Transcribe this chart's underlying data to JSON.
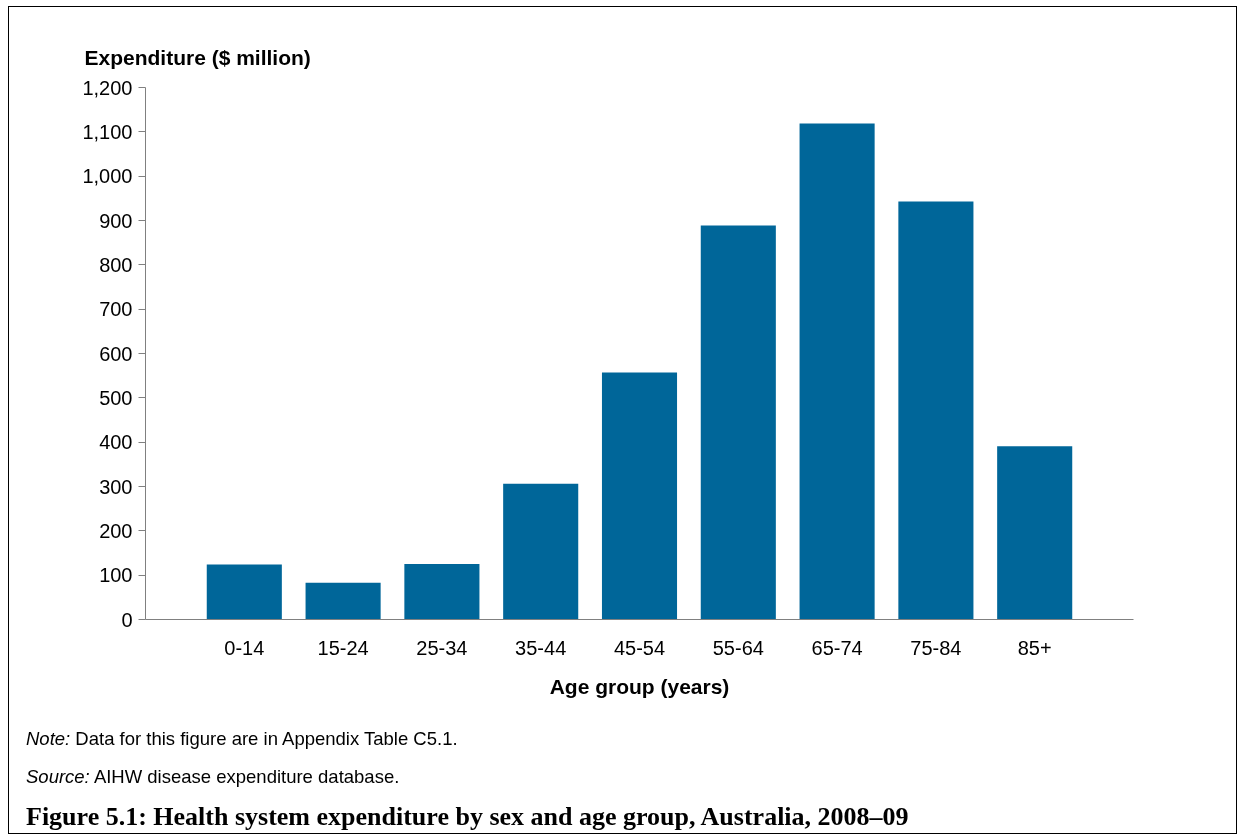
{
  "chart_data": {
    "type": "bar",
    "title": "Figure 5.1: Health system expenditure by sex and age group, Australia, 2008–09",
    "xlabel": "Age group (years)",
    "ylabel": "Expenditure ($ million)",
    "categories": [
      "0-14",
      "15-24",
      "25-34",
      "35-44",
      "45-54",
      "55-64",
      "65-74",
      "75-84",
      "85+"
    ],
    "values": [
      124,
      83,
      125,
      306,
      557,
      889,
      1119,
      943,
      391
    ],
    "color": "#006699",
    "ylim": [
      0,
      1200
    ],
    "yticks": [
      0,
      100,
      200,
      300,
      400,
      500,
      600,
      700,
      800,
      900,
      {
        "value": 1000,
        "label": "1,000"
      },
      {
        "value": 1100,
        "label": "1,100"
      },
      {
        "value": 1200,
        "label": "1,200"
      }
    ],
    "grid": false,
    "annotations": [
      "Note: Data for this figure are in Appendix Table C5.1.",
      "Source: AIHW disease expenditure database."
    ]
  }
}
